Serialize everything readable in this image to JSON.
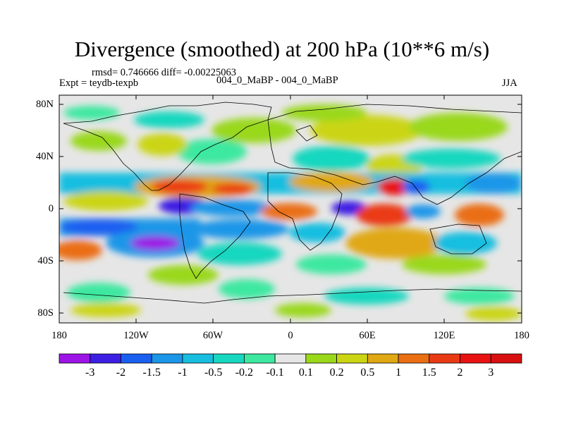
{
  "title": "Divergence (smoothed) at 200 hPa (10**6 m/s)",
  "stats": "rmsd= 0.746666 diff= -0.00225063",
  "expt": "Expt = teydb-texpb",
  "case": "004_0_MaBP - 004_0_MaBP",
  "season": "JJA",
  "y_ticks": [
    "80N",
    "40N",
    "0",
    "40S",
    "80S"
  ],
  "x_ticks": [
    "180",
    "120W",
    "60W",
    "0",
    "60E",
    "120E",
    "180"
  ],
  "colorbar": {
    "labels": [
      "-3",
      "-2",
      "-1.5",
      "-1",
      "-0.5",
      "-0.2",
      "-0.1",
      "0.1",
      "0.2",
      "0.5",
      "1",
      "1.5",
      "2",
      "3"
    ],
    "colors": [
      "#9d14e6",
      "#3d1fe4",
      "#1a5ff0",
      "#1b96e8",
      "#17bee0",
      "#18d7bf",
      "#3ee8a0",
      "#e6e6e6",
      "#9ad81a",
      "#cbd514",
      "#e0a812",
      "#ea6e12",
      "#ea3a14",
      "#e81212",
      "#d81010"
    ]
  }
}
